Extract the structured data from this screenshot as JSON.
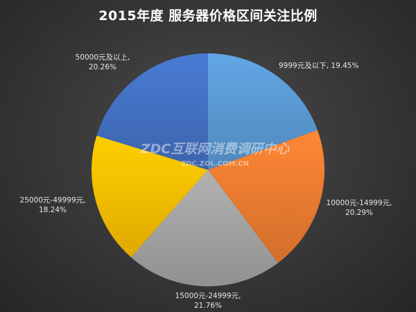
{
  "chart_data": {
    "type": "pie",
    "title": "2015年度 服务器价格区间关注比例",
    "slices": [
      {
        "label": "9999元及以下",
        "value": 19.45,
        "display": "9999元及以下, 19.45%",
        "color": "#5b9bd5"
      },
      {
        "label": "10000元-14999元",
        "value": 20.29,
        "display_line1": "10000元-14999元,",
        "display_line2": "20.29%",
        "color": "#ed7d31"
      },
      {
        "label": "15000元-24999元",
        "value": 21.76,
        "display_line1": "15000元-24999元,",
        "display_line2": "21.76%",
        "color": "#a5a5a5"
      },
      {
        "label": "25000元-49999元",
        "value": 18.24,
        "display_line1": "25000元-49999元,",
        "display_line2": "18.24%",
        "color": "#ffc000"
      },
      {
        "label": "50000元及以上",
        "value": 20.26,
        "display_line1": "50000元及以上,",
        "display_line2": "20.26%",
        "color": "#4472c4"
      }
    ],
    "start_angle": "12 o'clock",
    "direction": "clockwise",
    "legend": "none"
  },
  "watermark": {
    "line1": "ZDC互联网消费调研中心",
    "line2": "ZDC.ZOL.COM.CN"
  }
}
